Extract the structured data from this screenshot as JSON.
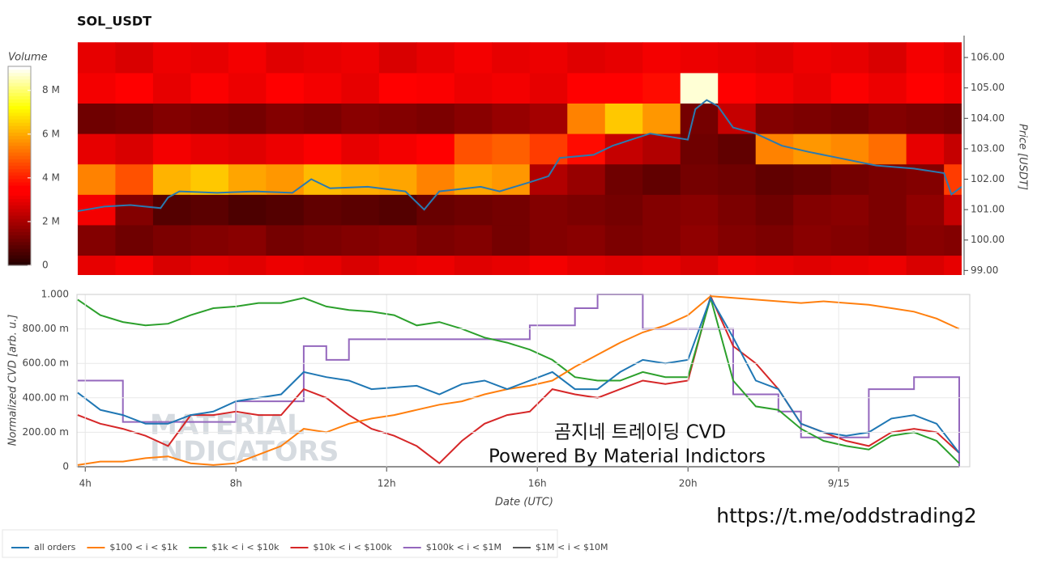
{
  "chart_data": [
    {
      "type": "heatmap",
      "title": "SOL_USDT",
      "y_label": "Price [USDT]",
      "colorbar_label": "Volume",
      "xlim": [
        3.78,
        27.27
      ],
      "ylim": [
        98.85,
        106.72
      ],
      "yticks": [
        {
          "value": 99,
          "label": "99.00"
        },
        {
          "value": 100,
          "label": "100.00"
        },
        {
          "value": 101,
          "label": "101.00"
        },
        {
          "value": 102,
          "label": "102.00"
        },
        {
          "value": 103,
          "label": "103.00"
        },
        {
          "value": 104,
          "label": "104.00"
        },
        {
          "value": 105,
          "label": "105.00"
        },
        {
          "value": 106,
          "label": "106.00"
        }
      ],
      "zlim": [
        0,
        9.1
      ],
      "zticks": [
        0,
        {
          "value": 2,
          "label": "2 M"
        },
        {
          "value": 4,
          "label": "4 M"
        },
        {
          "value": 6,
          "label": "6 M"
        },
        {
          "value": 8,
          "label": "8 M"
        }
      ],
      "colormap": "hot",
      "x_bins": [
        3.8,
        4.8,
        5.8,
        6.8,
        7.8,
        8.8,
        9.8,
        10.8,
        11.8,
        12.8,
        13.8,
        14.8,
        15.8,
        16.8,
        17.8,
        18.8,
        19.8,
        20.8,
        21.8,
        22.8,
        23.8,
        24.8,
        25.8,
        26.8,
        27.8
      ],
      "y_bins": [
        98.5,
        99.5,
        100.5,
        101.5,
        102.5,
        103.5,
        104.5,
        105.5,
        106.5
      ],
      "z": [
        [
          3,
          3.2,
          2.8,
          3,
          2.9,
          3.1,
          3,
          2.8,
          3,
          3.1,
          2.9,
          3,
          3.2,
          3,
          2.9,
          3,
          2.8,
          3.1,
          3,
          2.9,
          3,
          3.1,
          2.8,
          3
        ],
        [
          1.5,
          1.2,
          1.4,
          1.5,
          1.6,
          1.3,
          1.4,
          1.5,
          1.6,
          1.4,
          1.5,
          1.3,
          1.5,
          1.6,
          1.4,
          1.5,
          1.7,
          1.5,
          1.4,
          1.6,
          1.5,
          1.4,
          1.6,
          1.5
        ],
        [
          3.2,
          1.5,
          0.8,
          0.9,
          0.7,
          0.8,
          1,
          0.9,
          0.8,
          1.1,
          1.2,
          1.3,
          1.5,
          1.4,
          1.3,
          1.5,
          1.6,
          1.4,
          1.2,
          1.5,
          1.6,
          1.4,
          1.7,
          2.5
        ],
        [
          5.5,
          4.8,
          6.2,
          6.5,
          6,
          5.8,
          6.3,
          6.1,
          6,
          5.5,
          6,
          5.8,
          2.2,
          1.8,
          1.2,
          1,
          1.3,
          1.2,
          1,
          1.1,
          1.3,
          1.4,
          1.5,
          4.5
        ],
        [
          3,
          2.8,
          3.2,
          3,
          2.9,
          3.1,
          3.3,
          3,
          3.2,
          3.5,
          4.8,
          5,
          4.5,
          3.8,
          2.5,
          2.2,
          1.2,
          1,
          5.5,
          5.8,
          5.6,
          5.2,
          3,
          2.5
        ],
        [
          1.2,
          1.3,
          1.5,
          1.4,
          1.3,
          1.5,
          1.4,
          1.6,
          1.5,
          1.4,
          1.6,
          1.8,
          2,
          5.5,
          6.5,
          5.8,
          1.3,
          2.5,
          1.5,
          1.4,
          1.3,
          1.5,
          1.4,
          1.3
        ],
        [
          3.2,
          3.5,
          3,
          3.3,
          3.1,
          3.4,
          3.2,
          3,
          3.5,
          3.3,
          3.1,
          3.2,
          3,
          3.4,
          3.6,
          3.8,
          8.8,
          3.5,
          3.2,
          3,
          3.3,
          3.1,
          3.4,
          3.2
        ],
        [
          3,
          2.8,
          3.1,
          3,
          3.2,
          2.9,
          3,
          3.1,
          2.8,
          3,
          3.2,
          3,
          3.1,
          2.9,
          3,
          3.2,
          3.1,
          3,
          2.9,
          3.1,
          3,
          2.8,
          3.2,
          3
        ]
      ],
      "line": {
        "color": "#2a7ab0",
        "x": [
          3.8,
          4.5,
          5.2,
          6,
          6.2,
          6.5,
          7.5,
          8.5,
          9.5,
          10,
          10.5,
          11.5,
          12.5,
          13,
          13.4,
          14.5,
          15,
          15.8,
          16.3,
          16.6,
          17.5,
          18,
          18.5,
          19,
          19.5,
          20,
          20.2,
          20.5,
          20.8,
          21.2,
          21.8,
          22.5,
          23.2,
          24,
          25,
          26,
          26.8,
          27,
          27.27
        ],
        "values": [
          100.95,
          101.1,
          101.15,
          101.05,
          101.4,
          101.6,
          101.55,
          101.6,
          101.55,
          102.0,
          101.7,
          101.75,
          101.6,
          101.0,
          101.6,
          101.75,
          101.6,
          101.9,
          102.1,
          102.7,
          102.8,
          103.1,
          103.3,
          103.5,
          103.4,
          103.3,
          104.3,
          104.6,
          104.4,
          103.7,
          103.5,
          103.1,
          102.9,
          102.7,
          102.45,
          102.35,
          102.2,
          101.5,
          101.75
        ]
      }
    },
    {
      "type": "line",
      "x_label": "Date (UTC)",
      "y_label": "Normalized CVD [arb. u.]",
      "xlim": [
        3.78,
        27.48
      ],
      "ylim": [
        0,
        1
      ],
      "xticks": [
        {
          "value": 4,
          "label": "4h"
        },
        {
          "value": 8,
          "label": "8h"
        },
        {
          "value": 12,
          "label": "12h"
        },
        {
          "value": 16,
          "label": "16h"
        },
        {
          "value": 20,
          "label": "20h"
        },
        {
          "value": 24,
          "label": "9/15"
        }
      ],
      "yticks": [
        0,
        {
          "value": 0.2,
          "label": "200.00 m"
        },
        {
          "value": 0.4,
          "label": "400.00 m"
        },
        {
          "value": 0.6,
          "label": "600.00 m"
        },
        {
          "value": 0.8,
          "label": "800.00 m"
        },
        {
          "value": 1,
          "label": "1.000"
        }
      ],
      "grid": true,
      "annotations": [
        "곰지네 트레이딩 CVD",
        "Powered By Material Indictors",
        "https://t.me/oddstrading2",
        "MATERIAL",
        "INDICATORS"
      ],
      "x": [
        3.8,
        4.4,
        5.0,
        5.6,
        6.2,
        6.8,
        7.4,
        8.0,
        8.6,
        9.2,
        9.8,
        10.4,
        11.0,
        11.6,
        12.2,
        12.8,
        13.4,
        14.0,
        14.6,
        15.2,
        15.8,
        16.4,
        17.0,
        17.6,
        18.2,
        18.8,
        19.4,
        20.0,
        20.6,
        21.2,
        21.8,
        22.4,
        23.0,
        23.6,
        24.2,
        24.8,
        25.4,
        26.0,
        26.6,
        27.2
      ],
      "series": [
        {
          "name": "all orders",
          "color": "#1f77b4",
          "values": [
            0.43,
            0.33,
            0.3,
            0.25,
            0.25,
            0.3,
            0.32,
            0.38,
            0.4,
            0.42,
            0.55,
            0.52,
            0.5,
            0.45,
            0.46,
            0.47,
            0.42,
            0.48,
            0.5,
            0.45,
            0.5,
            0.55,
            0.45,
            0.45,
            0.55,
            0.62,
            0.6,
            0.62,
            0.98,
            0.75,
            0.5,
            0.45,
            0.25,
            0.2,
            0.18,
            0.2,
            0.28,
            0.3,
            0.25,
            0.08
          ]
        },
        {
          "name": "$100 < i < $1k",
          "color": "#ff7f0e",
          "values": [
            0.01,
            0.03,
            0.03,
            0.05,
            0.06,
            0.02,
            0.01,
            0.02,
            0.07,
            0.12,
            0.22,
            0.2,
            0.25,
            0.28,
            0.3,
            0.33,
            0.36,
            0.38,
            0.42,
            0.45,
            0.47,
            0.5,
            0.58,
            0.65,
            0.72,
            0.78,
            0.82,
            0.88,
            0.99,
            0.98,
            0.97,
            0.96,
            0.95,
            0.96,
            0.95,
            0.94,
            0.92,
            0.9,
            0.86,
            0.8
          ]
        },
        {
          "name": "$1k < i < $10k",
          "color": "#2ca02c",
          "values": [
            0.97,
            0.88,
            0.84,
            0.82,
            0.83,
            0.88,
            0.92,
            0.93,
            0.95,
            0.95,
            0.98,
            0.93,
            0.91,
            0.9,
            0.88,
            0.82,
            0.84,
            0.8,
            0.75,
            0.72,
            0.68,
            0.62,
            0.52,
            0.5,
            0.5,
            0.55,
            0.52,
            0.52,
            0.98,
            0.5,
            0.35,
            0.33,
            0.22,
            0.15,
            0.12,
            0.1,
            0.18,
            0.2,
            0.15,
            0.02
          ]
        },
        {
          "name": "$10k < i < $100k",
          "color": "#d62728",
          "values": [
            0.3,
            0.25,
            0.22,
            0.18,
            0.12,
            0.3,
            0.3,
            0.32,
            0.3,
            0.3,
            0.45,
            0.4,
            0.3,
            0.22,
            0.18,
            0.12,
            0.02,
            0.15,
            0.25,
            0.3,
            0.32,
            0.45,
            0.42,
            0.4,
            0.45,
            0.5,
            0.48,
            0.5,
            0.99,
            0.7,
            0.6,
            0.45,
            0.25,
            0.2,
            0.15,
            0.12,
            0.2,
            0.22,
            0.2,
            0.08
          ]
        },
        {
          "name": "$100k < i < $1M",
          "color": "#9467bd",
          "steps": true,
          "values": [
            0.5,
            0.5,
            0.26,
            0.26,
            0.26,
            0.26,
            0.26,
            0.38,
            0.38,
            0.38,
            0.7,
            0.62,
            0.74,
            0.74,
            0.74,
            0.74,
            0.74,
            0.74,
            0.74,
            0.74,
            0.82,
            0.82,
            0.92,
            1.0,
            1.0,
            0.8,
            0.8,
            0.8,
            0.8,
            0.42,
            0.42,
            0.32,
            0.17,
            0.17,
            0.17,
            0.45,
            0.45,
            0.52,
            0.52,
            0.0
          ]
        },
        {
          "name": "$1M < i < $10M",
          "color": "#555555",
          "values": [
            0,
            0,
            0,
            0,
            0,
            0,
            0,
            0,
            0,
            0,
            0,
            0,
            0,
            0,
            0,
            0,
            0,
            0,
            0,
            0,
            0,
            0,
            0,
            0,
            0,
            0,
            0,
            0,
            0,
            0,
            0,
            0,
            0,
            0,
            0,
            0,
            0,
            0,
            0,
            0
          ]
        }
      ]
    }
  ]
}
